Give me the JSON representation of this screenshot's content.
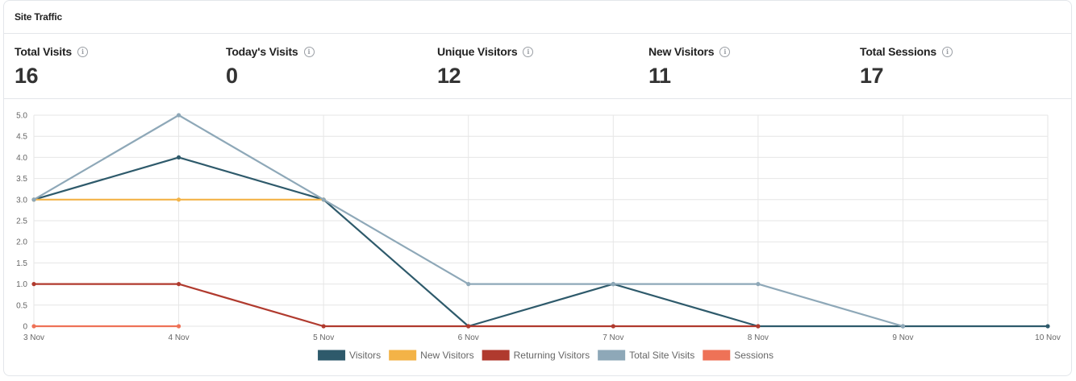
{
  "card": {
    "title": "Site Traffic"
  },
  "stats": [
    {
      "label": "Total Visits",
      "value": "16"
    },
    {
      "label": "Today's Visits",
      "value": "0"
    },
    {
      "label": "Unique Visitors",
      "value": "12"
    },
    {
      "label": "New Visitors",
      "value": "11"
    },
    {
      "label": "Total Sessions",
      "value": "17"
    }
  ],
  "icons": {
    "info": "info-icon"
  },
  "chart_data": {
    "type": "line",
    "categories": [
      "3 Nov",
      "4 Nov",
      "5 Nov",
      "6 Nov",
      "7 Nov",
      "8 Nov",
      "9 Nov",
      "10 Nov"
    ],
    "ylim": [
      0,
      5
    ],
    "yticks": [
      "0",
      "0.5",
      "1.0",
      "1.5",
      "2.0",
      "2.5",
      "3.0",
      "3.5",
      "4.0",
      "4.5",
      "5.0"
    ],
    "grid": true,
    "legend": "bottom",
    "series": [
      {
        "name": "Visitors",
        "color": "#2e5a6b",
        "values": [
          3,
          4,
          3,
          0,
          1,
          0,
          0,
          0
        ]
      },
      {
        "name": "New Visitors",
        "color": "#f3b347",
        "values": [
          3,
          3,
          3,
          null,
          null,
          null,
          null,
          null
        ]
      },
      {
        "name": "Returning Visitors",
        "color": "#b03a2e",
        "values": [
          1,
          1,
          0,
          0,
          0,
          0,
          null,
          null
        ]
      },
      {
        "name": "Total Site Visits",
        "color": "#8ea8b8",
        "values": [
          3,
          5,
          3,
          1,
          1,
          1,
          0,
          null
        ]
      },
      {
        "name": "Sessions",
        "color": "#ee7257",
        "values": [
          0,
          0,
          null,
          null,
          null,
          null,
          null,
          null
        ]
      }
    ]
  }
}
